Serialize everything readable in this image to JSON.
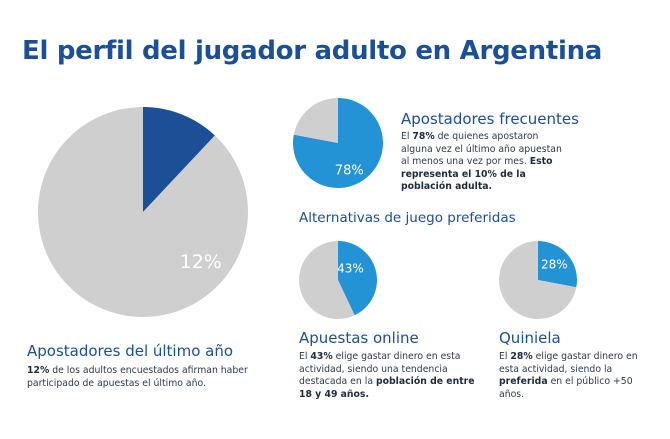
{
  "title": "El perfil del jugador adulto en Argentina",
  "colors": {
    "accent": "#1b4f96",
    "light_blue": "#2493d6",
    "gray": "#cfcfcf",
    "text": "#303a47"
  },
  "sections": {
    "last_year": {
      "heading": "Apostadores del último año",
      "desc": {
        "b1": "12%",
        "t1": " de los adultos encuestados afirman haber participado de apuestas el último año."
      }
    },
    "frequent": {
      "heading": "Apostadores frecuentes",
      "desc": {
        "t1": "El ",
        "b1": "78%",
        "t2": " de quienes apostaron alguna vez el último año apuestan al menos una vez por mes. ",
        "b2": "Esto representa el 10% de la población adulta."
      }
    },
    "alternatives": {
      "heading": "Alternativas de juego preferidas"
    },
    "online": {
      "heading": "Apuestas online",
      "desc": {
        "t1": "El ",
        "b1": "43%",
        "t2": " elige gastar dinero en esta actividad, siendo una tendencia destacada en la ",
        "b2": "población de entre 18 y 49 años."
      }
    },
    "quiniela": {
      "heading": "Quiniela",
      "desc": {
        "t1": "El ",
        "b1": "28%",
        "t2": " elige gastar dinero en esta actividad, siendo la ",
        "b2": "preferida",
        "t3": " en el público +50 años."
      }
    }
  },
  "chart_data": [
    {
      "type": "pie",
      "slices": [
        {
          "value": 12,
          "color": "#1b4f96"
        },
        {
          "value": 88,
          "color": "#cfcfcf"
        }
      ],
      "label": "12%"
    },
    {
      "type": "pie",
      "slices": [
        {
          "value": 78,
          "color": "#2493d6"
        },
        {
          "value": 22,
          "color": "#cfcfcf"
        }
      ],
      "label": "78%"
    },
    {
      "type": "pie",
      "slices": [
        {
          "value": 43,
          "color": "#2493d6"
        },
        {
          "value": 57,
          "color": "#cfcfcf"
        }
      ],
      "label": "43%"
    },
    {
      "type": "pie",
      "slices": [
        {
          "value": 28,
          "color": "#2493d6"
        },
        {
          "value": 72,
          "color": "#cfcfcf"
        }
      ],
      "label": "28%"
    }
  ]
}
